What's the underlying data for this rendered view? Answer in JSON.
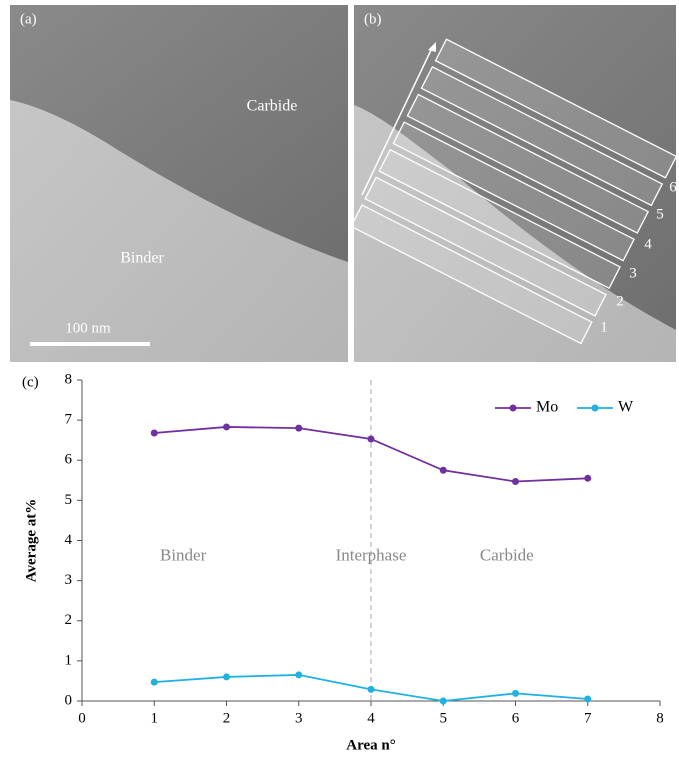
{
  "images": {
    "a": {
      "label": "(a)",
      "carbide": "Carbide",
      "binder": "Binder",
      "scale": "100 nm"
    },
    "b": {
      "label": "(b)",
      "areas": [
        "1",
        "2",
        "3",
        "4",
        "5",
        "6"
      ]
    }
  },
  "chart_data": {
    "type": "line",
    "panel_label": "(c)",
    "x_label": "Area n°",
    "y_label": "Average at%",
    "x": [
      1,
      2,
      3,
      4,
      5,
      6,
      7
    ],
    "series": [
      {
        "name": "Mo",
        "color": "#7030a0",
        "values": [
          6.68,
          6.83,
          6.8,
          6.53,
          5.75,
          5.47,
          5.55
        ]
      },
      {
        "name": "W",
        "color": "#1fb2e0",
        "values": [
          0.47,
          0.6,
          0.65,
          0.29,
          0.0,
          0.19,
          0.05
        ]
      }
    ],
    "xlim": [
      0,
      8
    ],
    "xticks": [
      0,
      1,
      2,
      3,
      4,
      5,
      6,
      7,
      8
    ],
    "ylim": [
      0,
      8
    ],
    "yticks": [
      0,
      1,
      2,
      3,
      4,
      5,
      6,
      7,
      8
    ],
    "vline_x": 4,
    "annotations": [
      "Binder",
      "Interphase",
      "Carbide"
    ],
    "legend": "upper right"
  }
}
